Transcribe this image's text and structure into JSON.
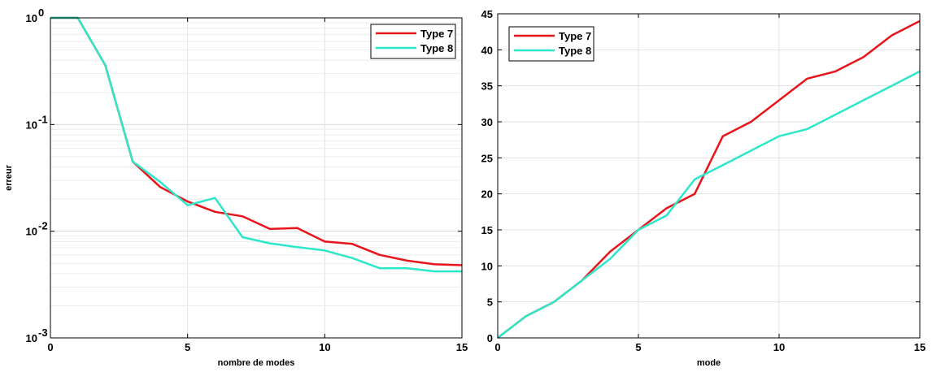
{
  "chart_data": [
    {
      "type": "line",
      "title": "",
      "xlabel": "nombre de modes",
      "ylabel": "erreur",
      "yscale": "log",
      "xlim": [
        0,
        15
      ],
      "ylim": [
        0.001,
        1
      ],
      "xticks": [
        0,
        5,
        10,
        15
      ],
      "yticks": [
        0.001,
        0.01,
        0.1,
        1
      ],
      "ytick_labels": [
        {
          "base": "10",
          "exp": "-3"
        },
        {
          "base": "10",
          "exp": "-2"
        },
        {
          "base": "10",
          "exp": "-1"
        },
        {
          "base": "10",
          "exp": "0"
        }
      ],
      "grid": true,
      "legend_position": "top-right",
      "series": [
        {
          "name": "Type 7",
          "color": "#e8141c",
          "x": [
            0,
            1,
            2,
            3,
            4,
            5,
            6,
            7,
            8,
            9,
            10,
            11,
            12,
            13,
            14,
            15
          ],
          "y": [
            1.0,
            1.0,
            0.36,
            0.045,
            0.026,
            0.019,
            0.0152,
            0.0138,
            0.0105,
            0.0107,
            0.008,
            0.0076,
            0.006,
            0.0053,
            0.0049,
            0.0048
          ]
        },
        {
          "name": "Type 8",
          "color": "#2ee6c8",
          "x": [
            0,
            1,
            2,
            3,
            4,
            5,
            6,
            7,
            8,
            9,
            10,
            11,
            12,
            13,
            14,
            15
          ],
          "y": [
            1.0,
            1.0,
            0.36,
            0.045,
            0.029,
            0.0175,
            0.0205,
            0.0088,
            0.0077,
            0.0071,
            0.0066,
            0.0056,
            0.0045,
            0.0045,
            0.0042,
            0.0042
          ]
        }
      ]
    },
    {
      "type": "line",
      "title": "",
      "xlabel": "mode",
      "ylabel": "",
      "xlim": [
        0,
        15
      ],
      "ylim": [
        0,
        45
      ],
      "xticks": [
        0,
        5,
        10,
        15
      ],
      "yticks": [
        0,
        5,
        10,
        15,
        20,
        25,
        30,
        35,
        40,
        45
      ],
      "grid": true,
      "legend_position": "top-left",
      "series": [
        {
          "name": "Type 7",
          "color": "#e8141c",
          "x": [
            0,
            1,
            2,
            3,
            4,
            5,
            6,
            7,
            8,
            9,
            10,
            11,
            12,
            13,
            14,
            15
          ],
          "y": [
            0,
            3,
            5,
            8,
            12,
            15,
            18,
            20,
            28,
            30,
            33,
            36,
            37,
            39,
            42,
            44
          ]
        },
        {
          "name": "Type 8",
          "color": "#2ee6c8",
          "x": [
            0,
            1,
            2,
            3,
            4,
            5,
            6,
            7,
            8,
            9,
            10,
            11,
            12,
            13,
            14,
            15
          ],
          "y": [
            0,
            3,
            5,
            8,
            11,
            15,
            17,
            22,
            24,
            26,
            28,
            29,
            31,
            33,
            35,
            37
          ]
        }
      ]
    }
  ]
}
